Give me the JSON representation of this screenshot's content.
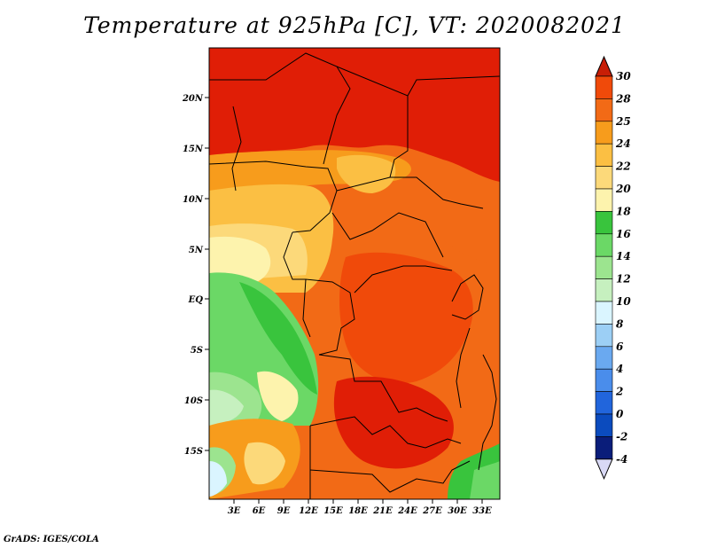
{
  "title": "Temperature at 925hPa [C], VT: 2020082021",
  "credit": "GrADS: IGES/COLA",
  "map": {
    "lat_labels": [
      "20N",
      "15N",
      "10N",
      "5N",
      "EQ",
      "5S",
      "10S",
      "15S"
    ],
    "lon_labels": [
      "3E",
      "6E",
      "9E",
      "12E",
      "15E",
      "18E",
      "21E",
      "24E",
      "27E",
      "30E",
      "33E"
    ]
  },
  "colorbar": {
    "levels": [
      "30",
      "28",
      "25",
      "24",
      "22",
      "20",
      "18",
      "16",
      "14",
      "12",
      "10",
      "8",
      "6",
      "4",
      "2",
      "0",
      "-2",
      "-4"
    ],
    "colors": [
      "#e01e06",
      "#f04a0a",
      "#f26a16",
      "#f79c1c",
      "#fbbf43",
      "#fcd97a",
      "#fdf3ad",
      "#39c43d",
      "#6bd866",
      "#9ce48f",
      "#c6f0bf",
      "#daf5ff",
      "#9ccff5",
      "#6aa9f0",
      "#4a8deb",
      "#2165dc",
      "#0b4bbe",
      "#0a1d7a"
    ],
    "top_arrow_color": "#c81e06",
    "bottom_arrow_color": "#d9d9f5"
  }
}
